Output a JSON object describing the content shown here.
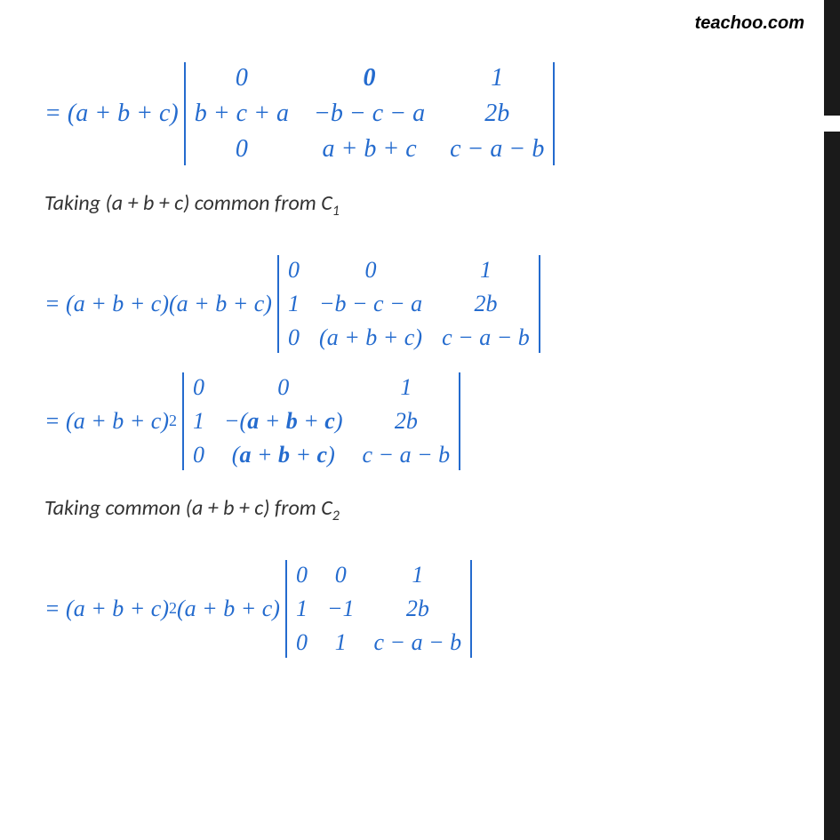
{
  "meta": {
    "watermark": "teachoo.com",
    "text_color": "#246bce",
    "explain_color": "#333333",
    "bg": "#ffffff"
  },
  "line1": {
    "prefix": "= (a + b + c)",
    "matrix": [
      [
        "0",
        "0",
        "1"
      ],
      [
        "b + c + a",
        "−b − c − a",
        "2b"
      ],
      [
        "0",
        "a + b + c",
        "c − a − b"
      ]
    ],
    "bold_cells": [
      [
        0,
        1
      ]
    ]
  },
  "explain1": {
    "text_before": "Taking (a + b + c)  common from C",
    "sub": "1"
  },
  "line2": {
    "prefix": "= (a + b + c)(a + b + c)",
    "matrix": [
      [
        "0",
        "0",
        "1"
      ],
      [
        "1",
        "−b − c − a",
        "2b"
      ],
      [
        "0",
        "(a + b + c)",
        "c − a − b"
      ]
    ]
  },
  "line3": {
    "prefix_a": "= (a + b + c)",
    "exp": "2",
    "matrix": [
      [
        "0",
        "0",
        "1"
      ],
      [
        "1",
        "−(a + b + c)",
        "2b"
      ],
      [
        "0",
        "(a + b + c)",
        "c − a − b"
      ]
    ],
    "bold_cells": [
      [
        1,
        1
      ],
      [
        2,
        1
      ]
    ]
  },
  "explain2": {
    "text_before": "Taking common (a + b + c) from C",
    "sub": "2"
  },
  "line4": {
    "prefix_a": "= (a + b + c)",
    "exp": "2",
    "prefix_b": "(a + b + c)",
    "matrix": [
      [
        "0",
        "0",
        "1"
      ],
      [
        "1",
        "−1",
        "2b"
      ],
      [
        "0",
        "1",
        "c − a − b"
      ]
    ]
  }
}
